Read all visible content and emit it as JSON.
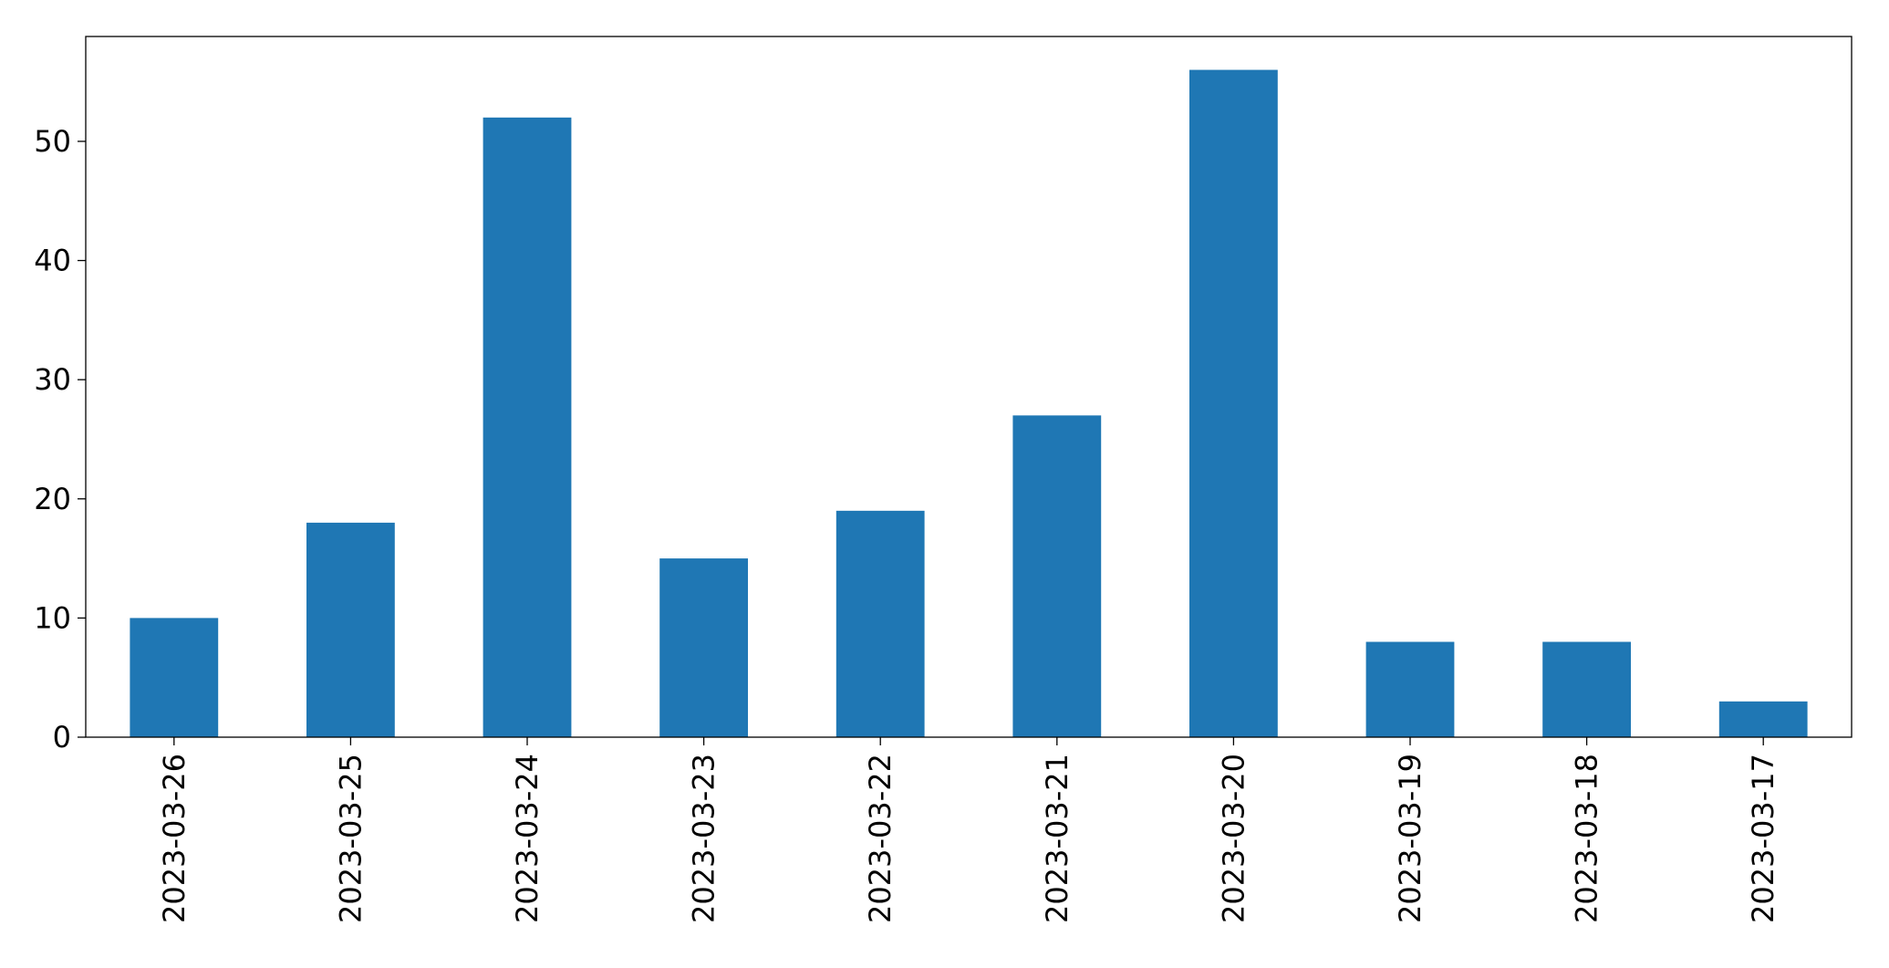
{
  "chart_data": {
    "type": "bar",
    "categories": [
      "2023-03-26",
      "2023-03-25",
      "2023-03-24",
      "2023-03-23",
      "2023-03-22",
      "2023-03-21",
      "2023-03-20",
      "2023-03-19",
      "2023-03-18",
      "2023-03-17"
    ],
    "values": [
      10,
      18,
      52,
      15,
      19,
      27,
      56,
      8,
      8,
      3
    ],
    "color": "#1f77b4",
    "ylim": [
      0,
      58.8
    ],
    "yticks": [
      0,
      10,
      20,
      30,
      40,
      50
    ],
    "grid": false
  }
}
